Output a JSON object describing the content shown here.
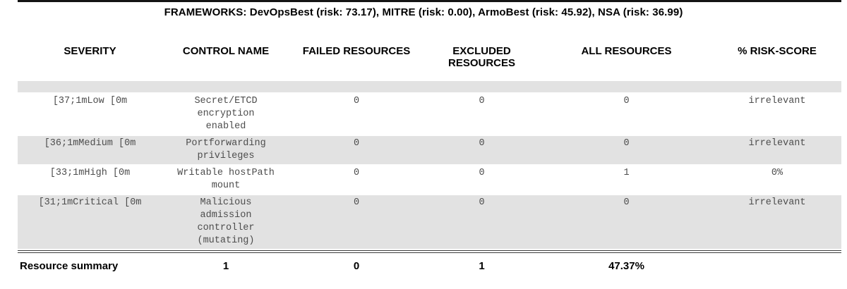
{
  "title": "FRAMEWORKS: DevOpsBest (risk: 73.17), MITRE (risk: 0.00), ArmoBest (risk: 45.92), NSA (risk: 36.99)",
  "frameworks": [
    {
      "name": "DevOpsBest",
      "risk": "73.17"
    },
    {
      "name": "MITRE",
      "risk": "0.00"
    },
    {
      "name": "ArmoBest",
      "risk": "45.92"
    },
    {
      "name": "NSA",
      "risk": "36.99"
    }
  ],
  "table": {
    "columns": {
      "severity": "SEVERITY",
      "control_name": "CONTROL NAME",
      "failed": "FAILED RESOURCES",
      "excluded": "EXCLUDED RESOURCES",
      "all": "ALL RESOURCES",
      "risk_score": "% RISK-SCORE"
    },
    "rows": [
      {
        "severity": "",
        "control_name": "",
        "failed": "",
        "excluded": "",
        "all": "",
        "risk_score": ""
      },
      {
        "severity": "[37;1mLow [0m",
        "control_name": "Secret/ETCD encryption enabled",
        "failed": "0",
        "excluded": "0",
        "all": "0",
        "risk_score": "irrelevant"
      },
      {
        "severity": "[36;1mMedium [0m",
        "control_name": "Portforwarding privileges",
        "failed": "0",
        "excluded": "0",
        "all": "0",
        "risk_score": "irrelevant"
      },
      {
        "severity": "[33;1mHigh [0m",
        "control_name": "Writable hostPath mount",
        "failed": "0",
        "excluded": "0",
        "all": "1",
        "risk_score": "0%"
      },
      {
        "severity": "[31;1mCritical [0m",
        "control_name": "Malicious admission controller (mutating)",
        "failed": "0",
        "excluded": "0",
        "all": "0",
        "risk_score": "irrelevant"
      }
    ],
    "summary": {
      "label": "Resource summary",
      "control_name": "1",
      "failed": "0",
      "excluded": "1",
      "all": "47.37%",
      "risk_score": ""
    }
  },
  "colors": {
    "stripe": "#e2e2e2",
    "body_text": "#4d4d4d",
    "rule": "#141414"
  }
}
